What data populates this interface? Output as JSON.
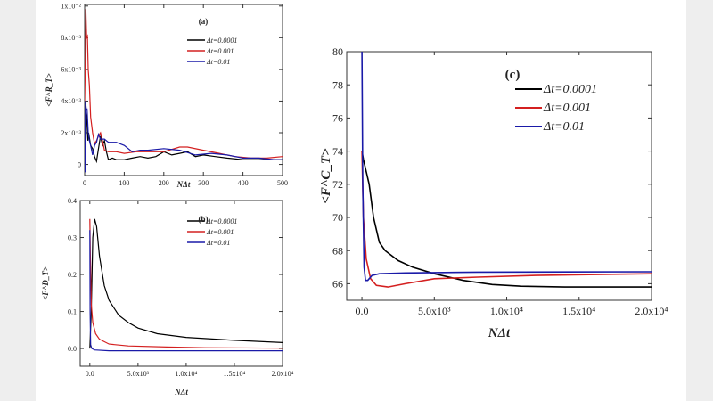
{
  "chart_data": [
    {
      "type": "line",
      "panel_label": "(a)",
      "xlabel": "NΔt",
      "ylabel": "<F^R_T>",
      "xlim": [
        0,
        500
      ],
      "ylim": [
        -0.0007,
        0.0101
      ],
      "xticks": [
        {
          "v": 0,
          "label": "0"
        },
        {
          "v": 100,
          "label": "100"
        },
        {
          "v": 200,
          "label": "200"
        },
        {
          "v": 300,
          "label": "300"
        },
        {
          "v": 400,
          "label": "400"
        },
        {
          "v": 500,
          "label": "500"
        }
      ],
      "yticks": [
        {
          "v": 0,
          "label": "0"
        },
        {
          "v": 0.002,
          "label": "2x10⁻³"
        },
        {
          "v": 0.004,
          "label": "4x10⁻³"
        },
        {
          "v": 0.006,
          "label": "6x10⁻³"
        },
        {
          "v": 0.008,
          "label": "8x10⁻³"
        },
        {
          "v": 0.01,
          "label": "1x10⁻²"
        }
      ],
      "legend_position": "top-right",
      "series": [
        {
          "name": "Δt=0.0001",
          "color": "#000000",
          "points": [
            [
              2,
              0.0035
            ],
            [
              5,
              0.003
            ],
            [
              8,
              0.0015
            ],
            [
              10,
              0.002
            ],
            [
              15,
              0.0012
            ],
            [
              20,
              0.001
            ],
            [
              25,
              0.0005
            ],
            [
              30,
              0.0002
            ],
            [
              35,
              0.001
            ],
            [
              40,
              0.0018
            ],
            [
              45,
              0.0012
            ],
            [
              50,
              0.0015
            ],
            [
              55,
              0.0008
            ],
            [
              60,
              0.0003
            ],
            [
              70,
              0.0004
            ],
            [
              80,
              0.0003
            ],
            [
              100,
              0.0003
            ],
            [
              120,
              0.0004
            ],
            [
              140,
              0.0005
            ],
            [
              160,
              0.0004
            ],
            [
              180,
              0.0005
            ],
            [
              200,
              0.0008
            ],
            [
              220,
              0.0006
            ],
            [
              240,
              0.0007
            ],
            [
              260,
              0.0008
            ],
            [
              280,
              0.0005
            ],
            [
              300,
              0.0006
            ],
            [
              330,
              0.0005
            ],
            [
              360,
              0.0004
            ],
            [
              400,
              0.0003
            ],
            [
              440,
              0.0003
            ],
            [
              480,
              0.0003
            ],
            [
              500,
              0.0003
            ]
          ]
        },
        {
          "name": "Δt=0.001",
          "color": "#d42020",
          "points": [
            [
              0,
              0.004
            ],
            [
              2,
              0.007
            ],
            [
              3,
              0.0098
            ],
            [
              5,
              0.008
            ],
            [
              7,
              0.0081
            ],
            [
              9,
              0.006
            ],
            [
              12,
              0.005
            ],
            [
              15,
              0.003
            ],
            [
              20,
              0.002
            ],
            [
              25,
              0.0013
            ],
            [
              30,
              0.0015
            ],
            [
              35,
              0.0018
            ],
            [
              40,
              0.002
            ],
            [
              45,
              0.0015
            ],
            [
              50,
              0.0009
            ],
            [
              60,
              0.0008
            ],
            [
              80,
              0.0008
            ],
            [
              100,
              0.0007
            ],
            [
              130,
              0.0008
            ],
            [
              160,
              0.0008
            ],
            [
              200,
              0.0008
            ],
            [
              240,
              0.0011
            ],
            [
              260,
              0.0011
            ],
            [
              300,
              0.0009
            ],
            [
              340,
              0.0007
            ],
            [
              380,
              0.0005
            ],
            [
              420,
              0.0004
            ],
            [
              460,
              0.0004
            ],
            [
              500,
              0.0005
            ]
          ]
        },
        {
          "name": "Δt=0.01",
          "color": "#1a1aa8",
          "points": [
            [
              1,
              -0.0005
            ],
            [
              2,
              0.004
            ],
            [
              4,
              0.0035
            ],
            [
              6,
              0.0035
            ],
            [
              9,
              0.002
            ],
            [
              12,
              0.0015
            ],
            [
              15,
              0.0012
            ],
            [
              20,
              0.0006
            ],
            [
              25,
              0.0012
            ],
            [
              30,
              0.0014
            ],
            [
              35,
              0.0019
            ],
            [
              40,
              0.0016
            ],
            [
              50,
              0.0016
            ],
            [
              60,
              0.0014
            ],
            [
              80,
              0.0014
            ],
            [
              100,
              0.0012
            ],
            [
              120,
              0.0008
            ],
            [
              140,
              0.0009
            ],
            [
              160,
              0.0009
            ],
            [
              200,
              0.001
            ],
            [
              240,
              0.0009
            ],
            [
              280,
              0.0006
            ],
            [
              320,
              0.0007
            ],
            [
              360,
              0.0006
            ],
            [
              400,
              0.0004
            ],
            [
              440,
              0.0004
            ],
            [
              480,
              0.0003
            ],
            [
              500,
              0.0003
            ]
          ]
        }
      ]
    },
    {
      "type": "line",
      "panel_label": "(b)",
      "xlabel": "NΔt",
      "ylabel": "<F^D_T>",
      "xlim": [
        -1000,
        20000
      ],
      "ylim": [
        -0.048,
        0.4
      ],
      "xticks": [
        {
          "v": 0,
          "label": "0.0"
        },
        {
          "v": 5000,
          "label": "5.0x10³"
        },
        {
          "v": 10000,
          "label": "1.0x10⁴"
        },
        {
          "v": 15000,
          "label": "1.5x10⁴"
        },
        {
          "v": 20000,
          "label": "2.0x10⁴"
        }
      ],
      "yticks": [
        {
          "v": 0,
          "label": "0.0"
        },
        {
          "v": 0.1,
          "label": "0.1"
        },
        {
          "v": 0.2,
          "label": "0.2"
        },
        {
          "v": 0.3,
          "label": "0.3"
        },
        {
          "v": 0.4,
          "label": "0.4"
        }
      ],
      "legend_position": "top-right",
      "series": [
        {
          "name": "Δt=0.0001",
          "color": "#000000",
          "points": [
            [
              0,
              0
            ],
            [
              150,
              0.1
            ],
            [
              300,
              0.3
            ],
            [
              500,
              0.35
            ],
            [
              700,
              0.33
            ],
            [
              1000,
              0.25
            ],
            [
              1500,
              0.17
            ],
            [
              2000,
              0.13
            ],
            [
              3000,
              0.09
            ],
            [
              4000,
              0.07
            ],
            [
              5000,
              0.055
            ],
            [
              7000,
              0.04
            ],
            [
              10000,
              0.03
            ],
            [
              15000,
              0.022
            ],
            [
              20000,
              0.016
            ]
          ]
        },
        {
          "name": "Δt=0.001",
          "color": "#d42020",
          "points": [
            [
              0,
              0.35
            ],
            [
              50,
              0.25
            ],
            [
              150,
              0.12
            ],
            [
              300,
              0.07
            ],
            [
              600,
              0.04
            ],
            [
              1000,
              0.025
            ],
            [
              2000,
              0.012
            ],
            [
              4000,
              0.007
            ],
            [
              8000,
              0.004
            ],
            [
              12000,
              0.002
            ],
            [
              20000,
              0.001
            ]
          ]
        },
        {
          "name": "Δt=0.01",
          "color": "#1a1aa8",
          "points": [
            [
              0,
              0.32
            ],
            [
              30,
              0.1
            ],
            [
              80,
              0.01
            ],
            [
              200,
              0
            ],
            [
              500,
              -0.004
            ],
            [
              2000,
              -0.006
            ],
            [
              20000,
              -0.006
            ]
          ]
        }
      ]
    },
    {
      "type": "line",
      "panel_label": "(c)",
      "xlabel": "NΔt",
      "ylabel": "<F^C_T>",
      "xlim": [
        -1050,
        20000
      ],
      "ylim": [
        65,
        80
      ],
      "xticks": [
        {
          "v": 0,
          "label": "0.0"
        },
        {
          "v": 5000,
          "label": "5.0x10³"
        },
        {
          "v": 10000,
          "label": "1.0x10⁴"
        },
        {
          "v": 15000,
          "label": "1.5x10⁴"
        },
        {
          "v": 20000,
          "label": "2.0x10⁴"
        }
      ],
      "yticks": [
        {
          "v": 66,
          "label": "66"
        },
        {
          "v": 68,
          "label": "68"
        },
        {
          "v": 70,
          "label": "70"
        },
        {
          "v": 72,
          "label": "72"
        },
        {
          "v": 74,
          "label": "74"
        },
        {
          "v": 76,
          "label": "76"
        },
        {
          "v": 78,
          "label": "78"
        },
        {
          "v": 80,
          "label": "80"
        }
      ],
      "legend_position": "top-right",
      "series": [
        {
          "name": "Δt=0.0001",
          "color": "#000000",
          "points": [
            [
              0,
              74
            ],
            [
              100,
              73.5
            ],
            [
              500,
              72
            ],
            [
              800,
              70
            ],
            [
              1200,
              68.5
            ],
            [
              1600,
              68
            ],
            [
              2500,
              67.4
            ],
            [
              3500,
              67
            ],
            [
              5000,
              66.6
            ],
            [
              7000,
              66.2
            ],
            [
              9000,
              65.95
            ],
            [
              11000,
              65.85
            ],
            [
              14000,
              65.8
            ],
            [
              20000,
              65.8
            ]
          ]
        },
        {
          "name": "Δt=0.001",
          "color": "#d42020",
          "points": [
            [
              0,
              74
            ],
            [
              100,
              70
            ],
            [
              300,
              67.5
            ],
            [
              600,
              66.3
            ],
            [
              1000,
              65.9
            ],
            [
              1800,
              65.8
            ],
            [
              3000,
              66
            ],
            [
              5000,
              66.3
            ],
            [
              8000,
              66.4
            ],
            [
              12000,
              66.5
            ],
            [
              20000,
              66.6
            ]
          ]
        },
        {
          "name": "Δt=0.01",
          "color": "#1a1aa8",
          "points": [
            [
              0,
              80
            ],
            [
              60,
              72
            ],
            [
              150,
              67
            ],
            [
              250,
              66.2
            ],
            [
              400,
              66.2
            ],
            [
              700,
              66.5
            ],
            [
              1200,
              66.6
            ],
            [
              3000,
              66.65
            ],
            [
              8000,
              66.7
            ],
            [
              20000,
              66.72
            ]
          ]
        }
      ]
    }
  ]
}
